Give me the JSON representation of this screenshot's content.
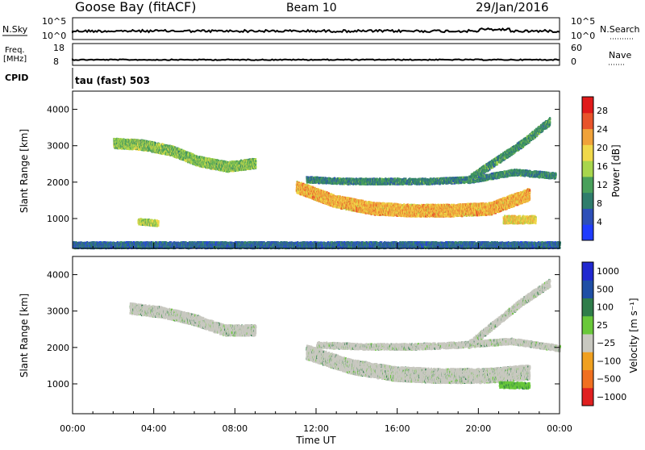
{
  "header": {
    "title_left": "Goose Bay (fitACF)",
    "title_center": "Beam 10",
    "title_right": "29/Jan/2016"
  },
  "top_panels": {
    "nsky_label": "N.Sky",
    "nsearch_label": "N.Search",
    "freq_label_line1": "Freq.",
    "freq_label_line2": "[MHz]",
    "nave_label": "Nave",
    "cpid_label": "CPID",
    "cpid_value": "tau (fast) 503",
    "nsky_ticks": [
      "10^5",
      "10^0"
    ],
    "nsearch_ticks": [
      "10^5",
      "10^0"
    ],
    "freq_ticks": [
      "18",
      "8"
    ],
    "nave_ticks": [
      "60",
      "0"
    ],
    "line_color": "#000000"
  },
  "chart_data": [
    {
      "type": "heatmap",
      "panel": "power",
      "ylabel": "Slant Range [km]",
      "xlabel": "",
      "x_ticks": [
        "00:00",
        "04:00",
        "08:00",
        "12:00",
        "16:00",
        "20:00",
        "00:00"
      ],
      "x_hours": [
        0,
        4,
        8,
        12,
        16,
        20,
        24
      ],
      "xlim_hours": [
        0,
        24
      ],
      "y_ticks": [
        1000,
        2000,
        3000,
        4000
      ],
      "ylim": [
        180,
        4500
      ],
      "colorbar_label": "Power [dB]",
      "colorbar_ticks": [
        4,
        8,
        12,
        16,
        20,
        24,
        28
      ],
      "colorbar_range": [
        0,
        31
      ],
      "colorscale": [
        "#1f3cff",
        "#2d4fb8",
        "#2f7d6c",
        "#49a05b",
        "#a8d64d",
        "#f0d84a",
        "#f0a23a",
        "#e8542b",
        "#e01a1a"
      ],
      "regions": [
        {
          "name": "pre-midnight band",
          "t0": 2.0,
          "t1": 9.0,
          "r_center": [
            3100,
            3050,
            2900,
            2600,
            2450,
            2550
          ],
          "width": 260,
          "value": 14
        },
        {
          "name": "evening band",
          "t0": 11.0,
          "t1": 22.5,
          "r_center": [
            1900,
            1500,
            1300,
            1250,
            1250,
            1300,
            1700
          ],
          "width": 320,
          "value": 22
        },
        {
          "name": "upper band",
          "t0": 11.5,
          "t1": 23.8,
          "r_center": [
            2100,
            2050,
            2050,
            2050,
            2100,
            2300,
            2200
          ],
          "width": 150,
          "value": 9
        },
        {
          "name": "near ground",
          "t0": 0.0,
          "t1": 24.0,
          "r_center": [
            300,
            300
          ],
          "width": 160,
          "value": 6
        },
        {
          "name": "small patch",
          "t0": 3.2,
          "t1": 4.2,
          "r_center": [
            950,
            900
          ],
          "width": 150,
          "value": 16
        },
        {
          "name": "late patch",
          "t0": 21.2,
          "t1": 22.8,
          "r_center": [
            1000,
            1000
          ],
          "width": 200,
          "value": 20
        },
        {
          "name": "rising arc",
          "t0": 19.5,
          "t1": 23.5,
          "r_center": [
            2100,
            2600,
            3100,
            3700
          ],
          "width": 200,
          "value": 10
        }
      ]
    },
    {
      "type": "heatmap",
      "panel": "velocity",
      "ylabel": "Slant Range [km]",
      "xlabel": "Time UT",
      "x_ticks": [
        "00:00",
        "04:00",
        "08:00",
        "12:00",
        "16:00",
        "20:00",
        "00:00"
      ],
      "x_hours": [
        0,
        4,
        8,
        12,
        16,
        20,
        24
      ],
      "xlim_hours": [
        0,
        24
      ],
      "y_ticks": [
        1000,
        2000,
        3000,
        4000
      ],
      "ylim": [
        180,
        4500
      ],
      "colorbar_label": "Velocity [m s⁻¹]",
      "colorbar_ticks": [
        "1000",
        "500",
        "100",
        "25",
        "−25",
        "−100",
        "−500",
        "−1000"
      ],
      "colorscale": [
        "#2028d0",
        "#1f4fa5",
        "#2f7d4a",
        "#69c83a",
        "#c8c8c0",
        "#f0a020",
        "#f07020",
        "#e02020"
      ],
      "regions": [
        {
          "name": "pre-midnight band",
          "t0": 2.8,
          "t1": 9.0,
          "r_center": [
            3100,
            3000,
            2800,
            2500,
            2500
          ],
          "width": 280,
          "value": "gray"
        },
        {
          "name": "evening band",
          "t0": 11.5,
          "t1": 22.5,
          "r_center": [
            1900,
            1500,
            1300,
            1250,
            1250,
            1350
          ],
          "width": 380,
          "value": "gray"
        },
        {
          "name": "upper band",
          "t0": 12.0,
          "t1": 24.0,
          "r_center": [
            2100,
            2050,
            2050,
            2100,
            2200,
            2000
          ],
          "width": 150,
          "value": "gray"
        },
        {
          "name": "late patch",
          "t0": 21.0,
          "t1": 22.5,
          "r_center": [
            1000,
            980
          ],
          "width": 150,
          "value": "green"
        },
        {
          "name": "rising arc",
          "t0": 19.5,
          "t1": 23.5,
          "r_center": [
            2100,
            2700,
            3300,
            3800
          ],
          "width": 200,
          "value": "gray"
        }
      ]
    }
  ],
  "colors": {
    "axis": "#000000",
    "grid_bg": "#ffffff"
  }
}
